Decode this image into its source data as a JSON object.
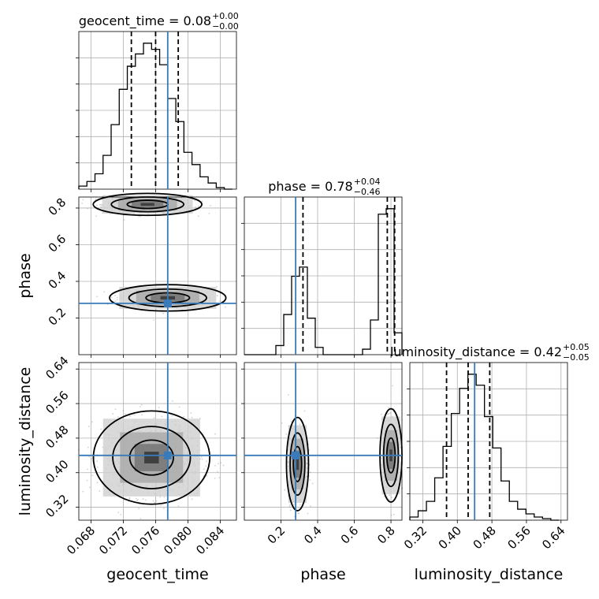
{
  "chart_data": {
    "type": "corner",
    "parameters": [
      "geocent_time",
      "phase",
      "luminosity_distance"
    ],
    "truths": {
      "geocent_time": 0.0775,
      "phase": 0.28,
      "luminosity_distance": 0.44
    },
    "ranges": {
      "geocent_time": [
        0.0665,
        0.086
      ],
      "phase": [
        0.0,
        0.86
      ],
      "luminosity_distance": [
        0.29,
        0.655
      ]
    },
    "ticks": {
      "geocent_time": [
        "0.068",
        "0.072",
        "0.076",
        "0.080",
        "0.084"
      ],
      "phase": [
        "0.2",
        "0.4",
        "0.6",
        "0.8"
      ],
      "luminosity_distance": [
        "0.32",
        "0.40",
        "0.48",
        "0.56",
        "0.64"
      ]
    },
    "panel_titles": {
      "geocent_time": {
        "main": "geocent_time = 0.08",
        "plus": "+0.00",
        "minus": "−0.00"
      },
      "phase": {
        "main": "phase = 0.78",
        "plus": "+0.04",
        "minus": "−0.46"
      },
      "luminosity_distance": {
        "main": "luminosity_distance = 0.42",
        "plus": "+0.05",
        "minus": "−0.05"
      }
    },
    "quantiles": {
      "geocent_time": [
        0.073,
        0.076,
        0.0788
      ],
      "phase": [
        0.32,
        0.78,
        0.82
      ],
      "luminosity_distance": [
        0.375,
        0.425,
        0.475
      ]
    },
    "histograms": {
      "geocent_time": {
        "edges": [
          0.0665,
          0.0675,
          0.0685,
          0.0695,
          0.0705,
          0.0715,
          0.0725,
          0.0735,
          0.0745,
          0.0755,
          0.0765,
          0.0775,
          0.0785,
          0.0795,
          0.0805,
          0.0815,
          0.0825,
          0.0835,
          0.0845,
          0.0855
        ],
        "counts": [
          2,
          5,
          10,
          22,
          42,
          65,
          80,
          88,
          95,
          91,
          81,
          59,
          44,
          24,
          16,
          8,
          4,
          1,
          0
        ]
      },
      "phase": {
        "edges": [
          0.0,
          0.043,
          0.086,
          0.129,
          0.172,
          0.215,
          0.258,
          0.301,
          0.344,
          0.387,
          0.43,
          0.473,
          0.516,
          0.559,
          0.602,
          0.645,
          0.688,
          0.731,
          0.774,
          0.817,
          0.86
        ],
        "counts": [
          0,
          0,
          0,
          0,
          5,
          22,
          43,
          48,
          20,
          4,
          0,
          0,
          0,
          0,
          0,
          3,
          19,
          77,
          80,
          12
        ]
      },
      "luminosity_distance": {
        "edges": [
          0.29,
          0.3092,
          0.3284,
          0.3476,
          0.3668,
          0.386,
          0.4052,
          0.4244,
          0.4436,
          0.4628,
          0.482,
          0.5012,
          0.5204,
          0.5396,
          0.5588,
          0.578,
          0.5972,
          0.6164,
          0.6356
        ],
        "counts": [
          2,
          6,
          12,
          27,
          47,
          68,
          84,
          93,
          86,
          66,
          46,
          25,
          12,
          7,
          4,
          2,
          1,
          0
        ]
      }
    },
    "axis_labels": {
      "x": [
        "geocent_time",
        "phase",
        "luminosity_distance"
      ],
      "y": [
        "",
        "phase",
        "luminosity_distance"
      ]
    }
  }
}
